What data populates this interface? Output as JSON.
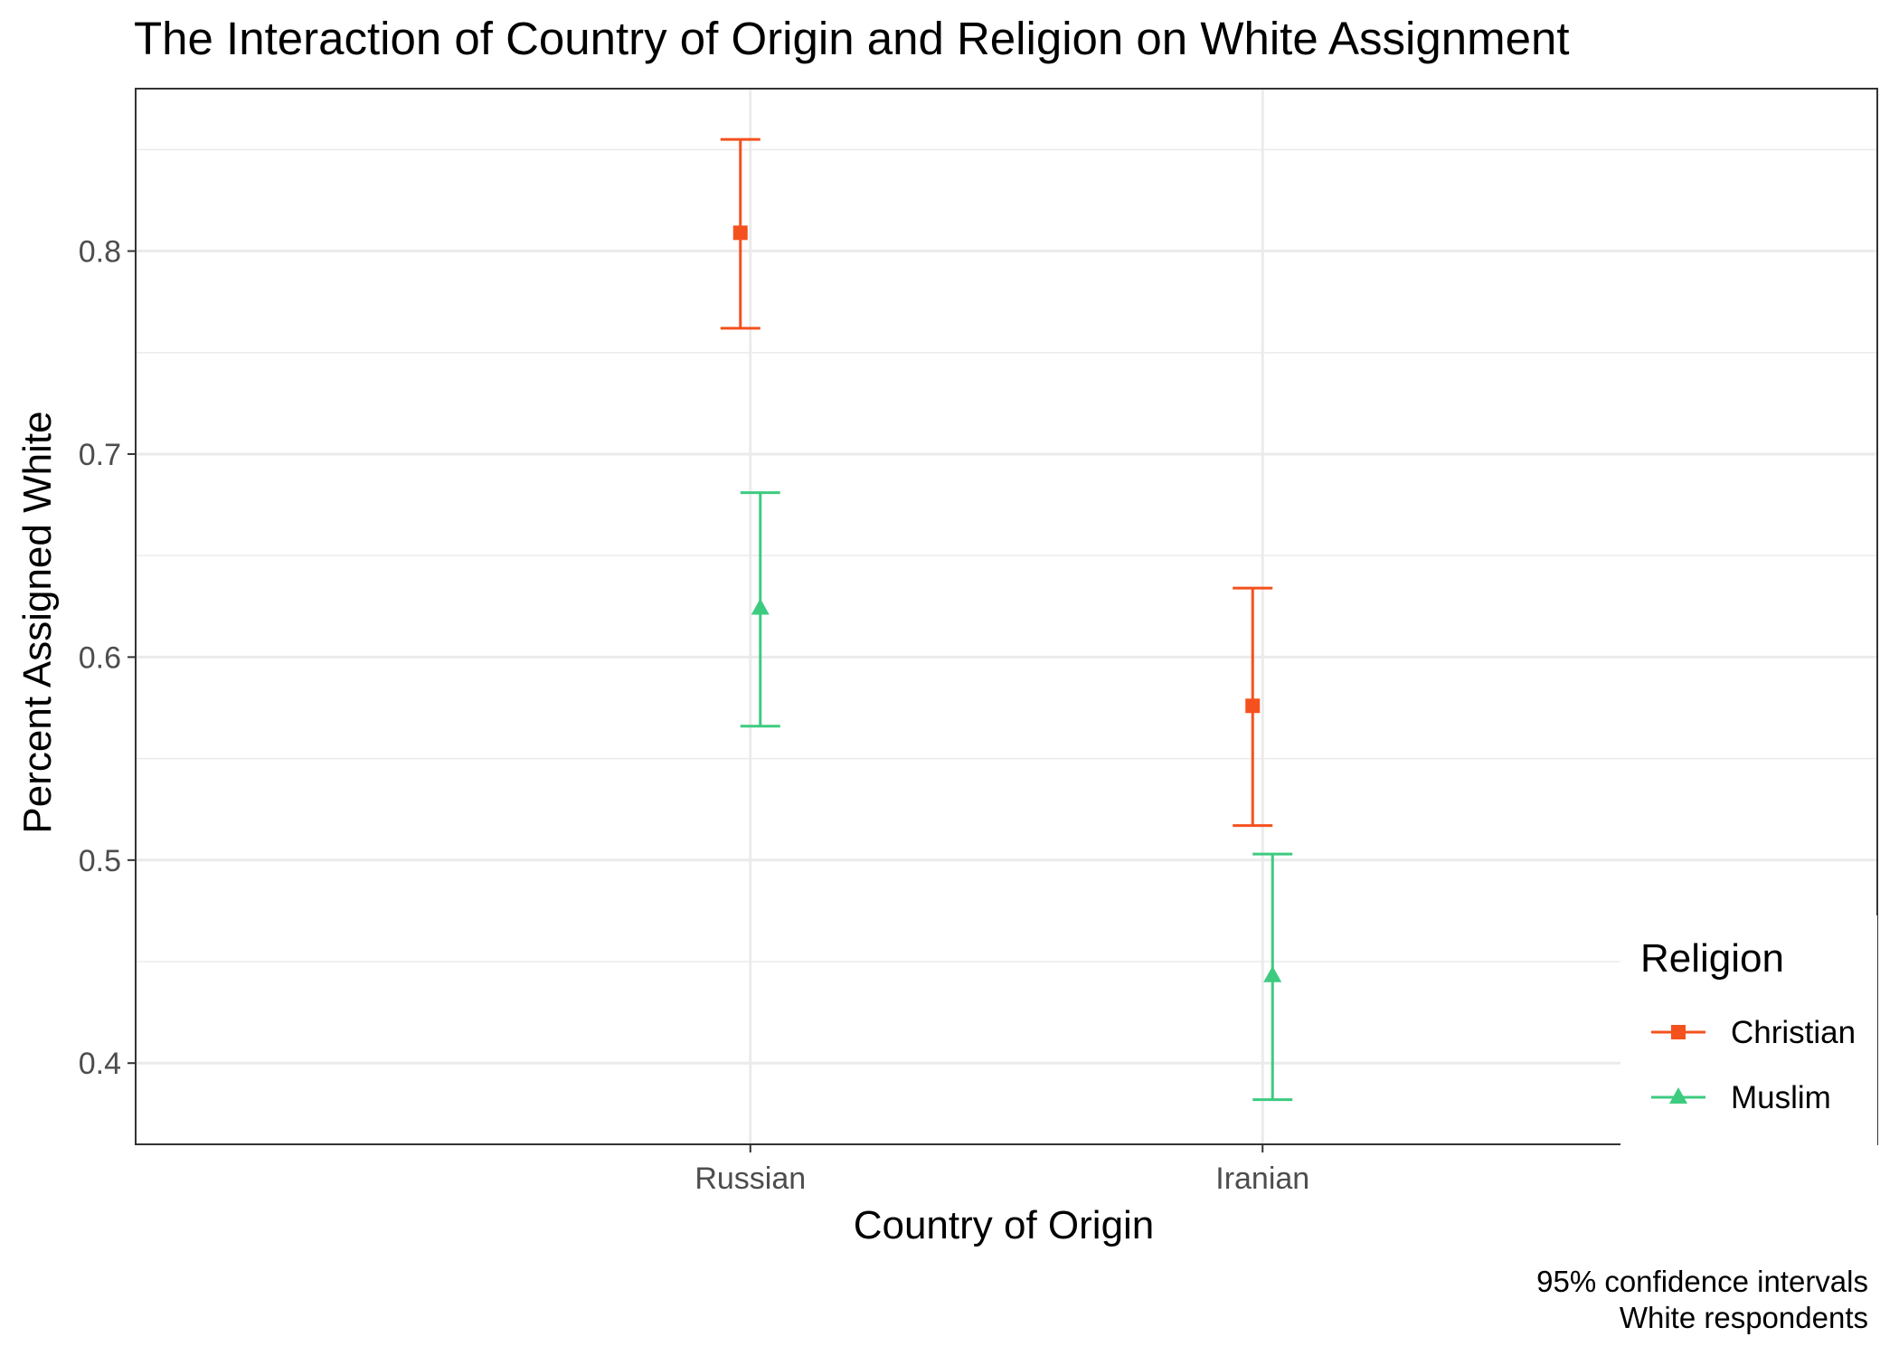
{
  "chart_data": {
    "type": "errorbar",
    "title": "The Interaction of Country of Origin and Religion on White Assignment",
    "xlabel": "Country of Origin",
    "ylabel": "Percent Assigned White",
    "categories": [
      "Russian",
      "Iranian"
    ],
    "ylim": [
      0.36,
      0.88
    ],
    "yticks": [
      "0.4",
      "0.5",
      "0.6",
      "0.7",
      "0.8"
    ],
    "grid": true,
    "legend": {
      "title": "Religion",
      "position": "bottom-right"
    },
    "caption": [
      "95% confidence intervals",
      "White respondents"
    ],
    "series": [
      {
        "name": "Christian",
        "color": "#F4511E",
        "marker": "square",
        "points": [
          {
            "x": "Russian",
            "y": 0.809,
            "lower": 0.762,
            "upper": 0.855
          },
          {
            "x": "Iranian",
            "y": 0.576,
            "lower": 0.517,
            "upper": 0.634
          }
        ]
      },
      {
        "name": "Muslim",
        "color": "#3DCB80",
        "marker": "triangle",
        "points": [
          {
            "x": "Russian",
            "y": 0.624,
            "lower": 0.566,
            "upper": 0.681
          },
          {
            "x": "Iranian",
            "y": 0.443,
            "lower": 0.382,
            "upper": 0.503
          }
        ]
      }
    ]
  }
}
